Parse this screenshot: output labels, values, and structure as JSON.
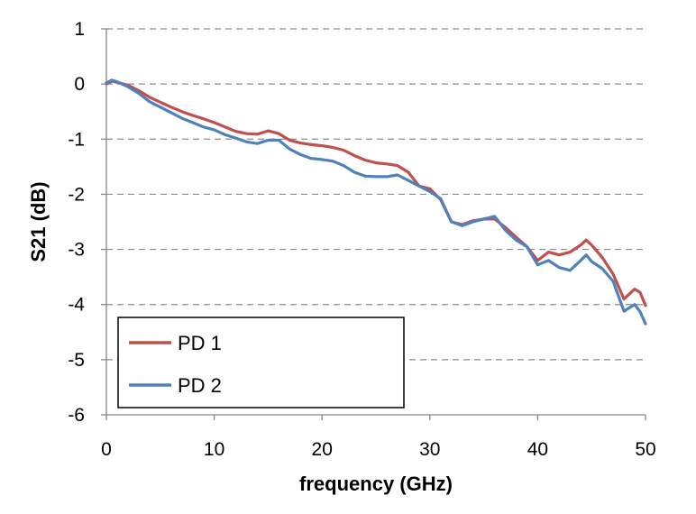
{
  "chart_data": {
    "type": "line",
    "title": "",
    "xlabel": "frequency (GHz)",
    "ylabel": "S21 (dB)",
    "xlim": [
      0,
      50
    ],
    "ylim": [
      -6,
      1
    ],
    "xticks": [
      "0",
      "10",
      "20",
      "30",
      "40",
      "50"
    ],
    "yticks": [
      "1",
      "0",
      "-1",
      "-2",
      "-3",
      "-4",
      "-5",
      "-6"
    ],
    "grid": "horizontal dashed",
    "legend_position": "bottom-left",
    "series": [
      {
        "name": "PD 1",
        "color": "#C0504D",
        "x": [
          0,
          0.5,
          1,
          2,
          3,
          4,
          5,
          6,
          7,
          8,
          9,
          10,
          11,
          12,
          13,
          14,
          15,
          16,
          17,
          18,
          19,
          20,
          21,
          22,
          23,
          24,
          25,
          26,
          27,
          28,
          29,
          30,
          31,
          32,
          33,
          34,
          35,
          36,
          37,
          38,
          39,
          40,
          41,
          42,
          43,
          44,
          44.5,
          45,
          46,
          47,
          48,
          49,
          49.5,
          50
        ],
        "y": [
          0,
          0.05,
          0.03,
          -0.02,
          -0.12,
          -0.24,
          -0.33,
          -0.42,
          -0.5,
          -0.57,
          -0.63,
          -0.7,
          -0.78,
          -0.86,
          -0.9,
          -0.91,
          -0.85,
          -0.9,
          -1.02,
          -1.07,
          -1.1,
          -1.12,
          -1.15,
          -1.2,
          -1.3,
          -1.38,
          -1.43,
          -1.45,
          -1.48,
          -1.6,
          -1.85,
          -1.9,
          -2.1,
          -2.5,
          -2.55,
          -2.48,
          -2.45,
          -2.45,
          -2.6,
          -2.78,
          -2.95,
          -3.2,
          -3.05,
          -3.1,
          -3.05,
          -2.92,
          -2.83,
          -2.92,
          -3.15,
          -3.45,
          -3.9,
          -3.72,
          -3.78,
          -4.02
        ]
      },
      {
        "name": "PD 2",
        "color": "#4F81BD",
        "x": [
          0,
          0.5,
          1,
          2,
          3,
          4,
          5,
          6,
          7,
          8,
          9,
          10,
          11,
          12,
          13,
          14,
          15,
          16,
          17,
          18,
          19,
          20,
          21,
          22,
          23,
          24,
          25,
          26,
          27,
          28,
          29,
          30,
          31,
          32,
          33,
          34,
          35,
          36,
          37,
          38,
          39,
          40,
          41,
          42,
          43,
          44,
          44.5,
          45,
          46,
          47,
          48,
          49,
          49.5,
          50
        ],
        "y": [
          0.02,
          0.07,
          0.04,
          -0.05,
          -0.17,
          -0.32,
          -0.42,
          -0.52,
          -0.62,
          -0.7,
          -0.78,
          -0.83,
          -0.92,
          -0.98,
          -1.05,
          -1.08,
          -1.02,
          -1.02,
          -1.18,
          -1.28,
          -1.35,
          -1.37,
          -1.4,
          -1.48,
          -1.6,
          -1.67,
          -1.68,
          -1.68,
          -1.65,
          -1.75,
          -1.85,
          -1.95,
          -2.08,
          -2.5,
          -2.57,
          -2.5,
          -2.45,
          -2.4,
          -2.65,
          -2.83,
          -2.95,
          -3.28,
          -3.2,
          -3.33,
          -3.38,
          -3.2,
          -3.1,
          -3.22,
          -3.35,
          -3.58,
          -4.12,
          -4.0,
          -4.13,
          -4.35
        ]
      }
    ]
  }
}
